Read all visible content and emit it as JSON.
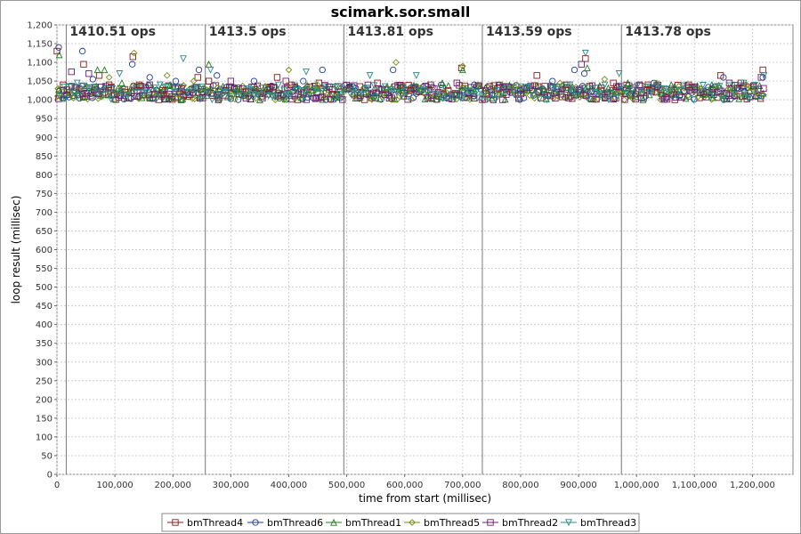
{
  "chart_data": {
    "type": "scatter",
    "title": "scimark.sor.small",
    "xlabel": "time from start (millisec)",
    "ylabel": "loop result (millisec)",
    "xlim": [
      0,
      1270000
    ],
    "ylim": [
      0,
      1200
    ],
    "x_ticks": [
      0,
      100000,
      200000,
      300000,
      400000,
      500000,
      600000,
      700000,
      800000,
      900000,
      1000000,
      1100000,
      1200000
    ],
    "x_tick_labels": [
      "0",
      "100,000",
      "200,000",
      "300,000",
      "400,000",
      "500,000",
      "600,000",
      "700,000",
      "800,000",
      "900,000",
      "1,000,000",
      "1,100,000",
      "1,200,000"
    ],
    "y_ticks": [
      0,
      50,
      100,
      150,
      200,
      250,
      300,
      350,
      400,
      450,
      500,
      550,
      600,
      650,
      700,
      750,
      800,
      850,
      900,
      950,
      1000,
      1050,
      1100,
      1150,
      1200
    ],
    "y_tick_labels": [
      "0",
      "50",
      "100",
      "150",
      "200",
      "250",
      "300",
      "350",
      "400",
      "450",
      "500",
      "550",
      "600",
      "650",
      "700",
      "750",
      "800",
      "850",
      "900",
      "950",
      "1,000",
      "1,050",
      "1,100",
      "1,150",
      "1,200"
    ],
    "grid": true,
    "legend_position": "bottom",
    "iterations": [
      {
        "x": 16000,
        "label": "1410.51 ops"
      },
      {
        "x": 256000,
        "label": "1413.5 ops"
      },
      {
        "x": 495000,
        "label": "1413.81 ops"
      },
      {
        "x": 734000,
        "label": "1413.59 ops"
      },
      {
        "x": 974000,
        "label": "1413.78 ops"
      }
    ],
    "x_range_of_points": [
      0,
      1220000
    ],
    "series": [
      {
        "name": "bmThread4",
        "marker": "square",
        "color": "#8b1a1a",
        "x": [
          0,
          46000,
          73000,
          90000,
          131000,
          142000,
          182000,
          215000,
          243000,
          262000,
          380000,
          452000,
          553000,
          610000,
          645000,
          698000,
          760000,
          828000,
          880000,
          912000,
          960000,
          1020000,
          1090000,
          1145000,
          1180000,
          1218000
        ],
        "y": [
          1130,
          1095,
          1065,
          1040,
          1115,
          1040,
          1025,
          1030,
          1060,
          1050,
          1060,
          1045,
          1045,
          1025,
          1040,
          1085,
          1030,
          1065,
          1040,
          1110,
          1045,
          1040,
          1040,
          1065,
          1045,
          1080
        ]
      },
      {
        "name": "bmThread6",
        "marker": "circle",
        "color": "#1f3a93",
        "x": [
          3000,
          44000,
          62000,
          130000,
          160000,
          205000,
          245000,
          276000,
          340000,
          425000,
          458000,
          580000,
          720000,
          800000,
          855000,
          893000,
          910000,
          1030000,
          1150000,
          1218000
        ],
        "y": [
          1140,
          1130,
          1055,
          1095,
          1060,
          1050,
          1080,
          1065,
          1050,
          1050,
          1080,
          1080,
          1040,
          1025,
          1050,
          1080,
          1070,
          1045,
          1060,
          1060
        ]
      },
      {
        "name": "bmThread1",
        "marker": "triangle-up",
        "color": "#1e7b1e",
        "x": [
          4000,
          70000,
          82000,
          112000,
          195000,
          262000,
          310000,
          350000,
          590000,
          665000,
          700000,
          840000,
          915000,
          985000,
          1060000,
          1130000
        ],
        "y": [
          1120,
          1080,
          1080,
          1045,
          1040,
          1095,
          1030,
          1000,
          1030,
          1045,
          1080,
          1030,
          1085,
          1045,
          1040,
          1040
        ]
      },
      {
        "name": "bmThread5",
        "marker": "diamond",
        "color": "#7a8c14",
        "x": [
          1000,
          90000,
          133000,
          190000,
          236000,
          400000,
          450000,
          585000,
          700000,
          790000,
          868000,
          945000,
          1035000,
          1110000,
          1190000
        ],
        "y": [
          1010,
          1060,
          1125,
          1065,
          1050,
          1080,
          1040,
          1100,
          1090,
          1035,
          1045,
          1055,
          1045,
          1030,
          1040
        ]
      },
      {
        "name": "bmThread2",
        "marker": "square",
        "color": "#6b1f6b",
        "x": [
          25000,
          55000,
          160000,
          300000,
          395000,
          470000,
          555000,
          690000,
          770000,
          905000,
          1005000,
          1100000,
          1160000,
          1215000
        ],
        "y": [
          1075,
          1070,
          1040,
          1050,
          1050,
          1035,
          1030,
          1045,
          1035,
          1095,
          1040,
          1035,
          1045,
          1060
        ]
      },
      {
        "name": "bmThread3",
        "marker": "triangle-down",
        "color": "#2a8a8a",
        "x": [
          35000,
          108000,
          178000,
          218000,
          265000,
          430000,
          540000,
          620000,
          885000,
          912000,
          970000,
          1185000,
          1220000
        ],
        "y": [
          1045,
          1070,
          1040,
          1110,
          1080,
          1075,
          1065,
          1065,
          1040,
          1125,
          1070,
          1045,
          1065
        ]
      }
    ],
    "dense_band": [
      1000,
      1040
    ]
  }
}
